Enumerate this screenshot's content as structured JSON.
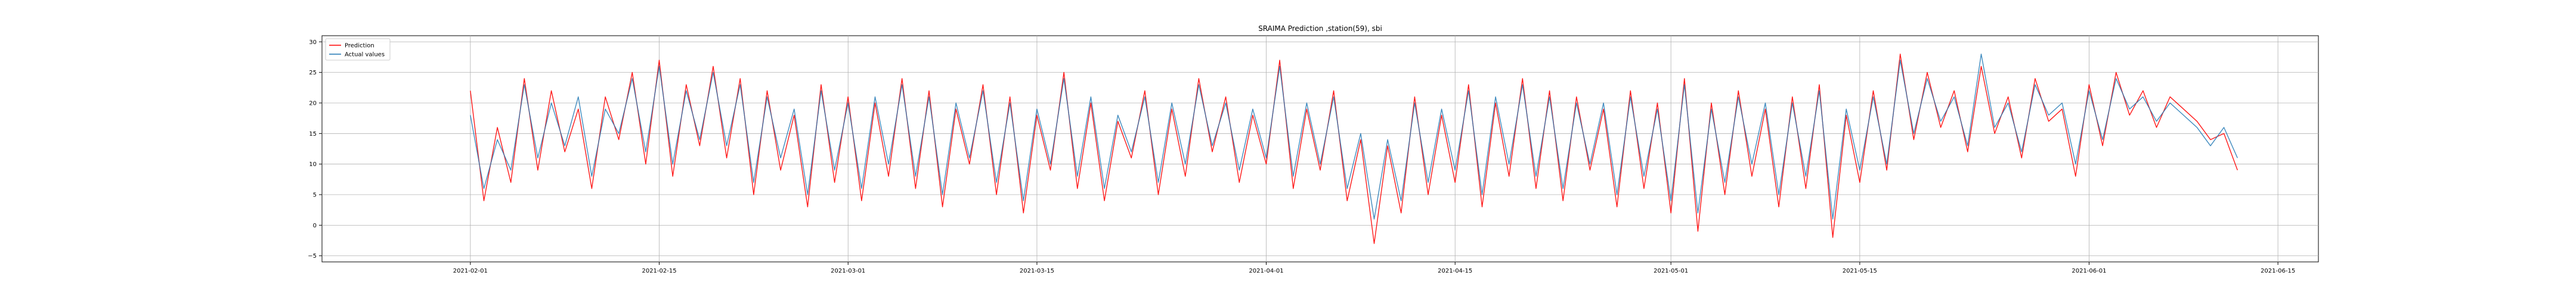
{
  "chart_data": {
    "type": "line",
    "title": "SRAIMA Prediction ,station(59), sbi",
    "xlabel": "",
    "ylabel": "",
    "x_axis": {
      "type": "date",
      "range": [
        "2021-01-21",
        "2021-06-18"
      ],
      "ticks": [
        "2021-02-01",
        "2021-02-15",
        "2021-03-01",
        "2021-03-15",
        "2021-04-01",
        "2021-04-15",
        "2021-05-01",
        "2021-05-15",
        "2021-06-01",
        "2021-06-15"
      ]
    },
    "y_axis": {
      "range": [
        -6,
        31
      ],
      "ticks": [
        -5,
        0,
        5,
        10,
        15,
        20,
        25,
        30
      ]
    },
    "grid": true,
    "legend": {
      "placement": "top-left",
      "entries": [
        {
          "label": "Prediction",
          "color": "#ff0000"
        },
        {
          "label": "Actual values",
          "color": "#1f77b4"
        }
      ]
    },
    "series": [
      {
        "name": "Prediction",
        "color": "#ff0000",
        "x": [
          "2021-02-01",
          "2021-02-02",
          "2021-02-03",
          "2021-02-04",
          "2021-02-05",
          "2021-02-06",
          "2021-02-07",
          "2021-02-08",
          "2021-02-09",
          "2021-02-10",
          "2021-02-11",
          "2021-02-12",
          "2021-02-13",
          "2021-02-14",
          "2021-02-15",
          "2021-02-16",
          "2021-02-17",
          "2021-02-18",
          "2021-02-19",
          "2021-02-20",
          "2021-02-21",
          "2021-02-22",
          "2021-02-23",
          "2021-02-24",
          "2021-02-25",
          "2021-02-26",
          "2021-02-27",
          "2021-02-28",
          "2021-03-01",
          "2021-03-02",
          "2021-03-03",
          "2021-03-04",
          "2021-03-05",
          "2021-03-06",
          "2021-03-07",
          "2021-03-08",
          "2021-03-09",
          "2021-03-10",
          "2021-03-11",
          "2021-03-12",
          "2021-03-13",
          "2021-03-14",
          "2021-03-15",
          "2021-03-16",
          "2021-03-17",
          "2021-03-18",
          "2021-03-19",
          "2021-03-20",
          "2021-03-21",
          "2021-03-22",
          "2021-03-23",
          "2021-03-24",
          "2021-03-25",
          "2021-03-26",
          "2021-03-27",
          "2021-03-28",
          "2021-03-29",
          "2021-03-30",
          "2021-03-31",
          "2021-04-01",
          "2021-04-02",
          "2021-04-03",
          "2021-04-04",
          "2021-04-05",
          "2021-04-06",
          "2021-04-07",
          "2021-04-08",
          "2021-04-09",
          "2021-04-10",
          "2021-04-11",
          "2021-04-12",
          "2021-04-13",
          "2021-04-14",
          "2021-04-15",
          "2021-04-16",
          "2021-04-17",
          "2021-04-18",
          "2021-04-19",
          "2021-04-20",
          "2021-04-21",
          "2021-04-22",
          "2021-04-23",
          "2021-04-24",
          "2021-04-25",
          "2021-04-26",
          "2021-04-27",
          "2021-04-28",
          "2021-04-29",
          "2021-04-30",
          "2021-05-01",
          "2021-05-02",
          "2021-05-03",
          "2021-05-04",
          "2021-05-05",
          "2021-05-06",
          "2021-05-07",
          "2021-05-08",
          "2021-05-09",
          "2021-05-10",
          "2021-05-11",
          "2021-05-12",
          "2021-05-13",
          "2021-05-14",
          "2021-05-15",
          "2021-05-16",
          "2021-05-17",
          "2021-05-18",
          "2021-05-19",
          "2021-05-20",
          "2021-05-21",
          "2021-05-22",
          "2021-05-23",
          "2021-05-24",
          "2021-05-25",
          "2021-05-26",
          "2021-05-27",
          "2021-05-28",
          "2021-05-29",
          "2021-05-30",
          "2021-05-31",
          "2021-06-01",
          "2021-06-02",
          "2021-06-03",
          "2021-06-04",
          "2021-06-05",
          "2021-06-06",
          "2021-06-07",
          "2021-06-08",
          "2021-06-09",
          "2021-06-10",
          "2021-06-11",
          "2021-06-12"
        ],
        "values": [
          22,
          4,
          16,
          7,
          24,
          9,
          22,
          12,
          19,
          6,
          21,
          14,
          25,
          10,
          27,
          8,
          23,
          13,
          26,
          11,
          24,
          5,
          22,
          9,
          18,
          3,
          23,
          7,
          21,
          4,
          20,
          8,
          24,
          6,
          22,
          3,
          19,
          10,
          23,
          5,
          21,
          2,
          18,
          9,
          25,
          6,
          20,
          4,
          17,
          11,
          22,
          5,
          19,
          8,
          24,
          12,
          21,
          7,
          18,
          10,
          27,
          6,
          19,
          9,
          22,
          4,
          14,
          -3,
          13,
          2,
          21,
          5,
          18,
          7,
          23,
          3,
          20,
          8,
          24,
          6,
          22,
          4,
          21,
          9,
          19,
          3,
          22,
          6,
          20,
          2,
          24,
          -1,
          20,
          5,
          22,
          8,
          19,
          3,
          21,
          6,
          23,
          -2,
          18,
          7,
          22,
          9,
          28,
          14,
          25,
          16,
          22,
          12,
          26,
          15,
          21,
          11,
          24,
          17,
          19,
          8,
          23,
          13,
          25,
          18,
          22,
          16,
          21,
          19,
          17,
          14,
          15,
          9
        ]
      },
      {
        "name": "Actual values",
        "color": "#1f77b4",
        "x": [
          "2021-02-01",
          "2021-02-02",
          "2021-02-03",
          "2021-02-04",
          "2021-02-05",
          "2021-02-06",
          "2021-02-07",
          "2021-02-08",
          "2021-02-09",
          "2021-02-10",
          "2021-02-11",
          "2021-02-12",
          "2021-02-13",
          "2021-02-14",
          "2021-02-15",
          "2021-02-16",
          "2021-02-17",
          "2021-02-18",
          "2021-02-19",
          "2021-02-20",
          "2021-02-21",
          "2021-02-22",
          "2021-02-23",
          "2021-02-24",
          "2021-02-25",
          "2021-02-26",
          "2021-02-27",
          "2021-02-28",
          "2021-03-01",
          "2021-03-02",
          "2021-03-03",
          "2021-03-04",
          "2021-03-05",
          "2021-03-06",
          "2021-03-07",
          "2021-03-08",
          "2021-03-09",
          "2021-03-10",
          "2021-03-11",
          "2021-03-12",
          "2021-03-13",
          "2021-03-14",
          "2021-03-15",
          "2021-03-16",
          "2021-03-17",
          "2021-03-18",
          "2021-03-19",
          "2021-03-20",
          "2021-03-21",
          "2021-03-22",
          "2021-03-23",
          "2021-03-24",
          "2021-03-25",
          "2021-03-26",
          "2021-03-27",
          "2021-03-28",
          "2021-03-29",
          "2021-03-30",
          "2021-03-31",
          "2021-04-01",
          "2021-04-02",
          "2021-04-03",
          "2021-04-04",
          "2021-04-05",
          "2021-04-06",
          "2021-04-07",
          "2021-04-08",
          "2021-04-09",
          "2021-04-10",
          "2021-04-11",
          "2021-04-12",
          "2021-04-13",
          "2021-04-14",
          "2021-04-15",
          "2021-04-16",
          "2021-04-17",
          "2021-04-18",
          "2021-04-19",
          "2021-04-20",
          "2021-04-21",
          "2021-04-22",
          "2021-04-23",
          "2021-04-24",
          "2021-04-25",
          "2021-04-26",
          "2021-04-27",
          "2021-04-28",
          "2021-04-29",
          "2021-04-30",
          "2021-05-01",
          "2021-05-02",
          "2021-05-03",
          "2021-05-04",
          "2021-05-05",
          "2021-05-06",
          "2021-05-07",
          "2021-05-08",
          "2021-05-09",
          "2021-05-10",
          "2021-05-11",
          "2021-05-12",
          "2021-05-13",
          "2021-05-14",
          "2021-05-15",
          "2021-05-16",
          "2021-05-17",
          "2021-05-18",
          "2021-05-19",
          "2021-05-20",
          "2021-05-21",
          "2021-05-22",
          "2021-05-23",
          "2021-05-24",
          "2021-05-25",
          "2021-05-26",
          "2021-05-27",
          "2021-05-28",
          "2021-05-29",
          "2021-05-30",
          "2021-05-31",
          "2021-06-01",
          "2021-06-02",
          "2021-06-03",
          "2021-06-04",
          "2021-06-05",
          "2021-06-06",
          "2021-06-07",
          "2021-06-08",
          "2021-06-09",
          "2021-06-10",
          "2021-06-11",
          "2021-06-12"
        ],
        "values": [
          18,
          6,
          14,
          9,
          23,
          11,
          20,
          13,
          21,
          8,
          19,
          15,
          24,
          12,
          26,
          10,
          22,
          14,
          25,
          13,
          23,
          7,
          21,
          11,
          19,
          5,
          22,
          9,
          20,
          6,
          21,
          10,
          23,
          8,
          21,
          5,
          20,
          11,
          22,
          7,
          20,
          4,
          19,
          10,
          24,
          8,
          21,
          6,
          18,
          12,
          21,
          7,
          20,
          10,
          23,
          13,
          20,
          9,
          19,
          11,
          26,
          8,
          20,
          10,
          21,
          6,
          15,
          1,
          14,
          4,
          20,
          7,
          19,
          9,
          22,
          5,
          21,
          10,
          23,
          8,
          21,
          6,
          20,
          10,
          20,
          5,
          21,
          8,
          19,
          4,
          23,
          2,
          19,
          7,
          21,
          10,
          20,
          5,
          20,
          8,
          22,
          1,
          19,
          9,
          21,
          10,
          27,
          15,
          24,
          17,
          21,
          13,
          28,
          16,
          20,
          12,
          23,
          18,
          20,
          10,
          22,
          14,
          24,
          19,
          21,
          17,
          20,
          18,
          16,
          13,
          16,
          11
        ]
      }
    ]
  }
}
